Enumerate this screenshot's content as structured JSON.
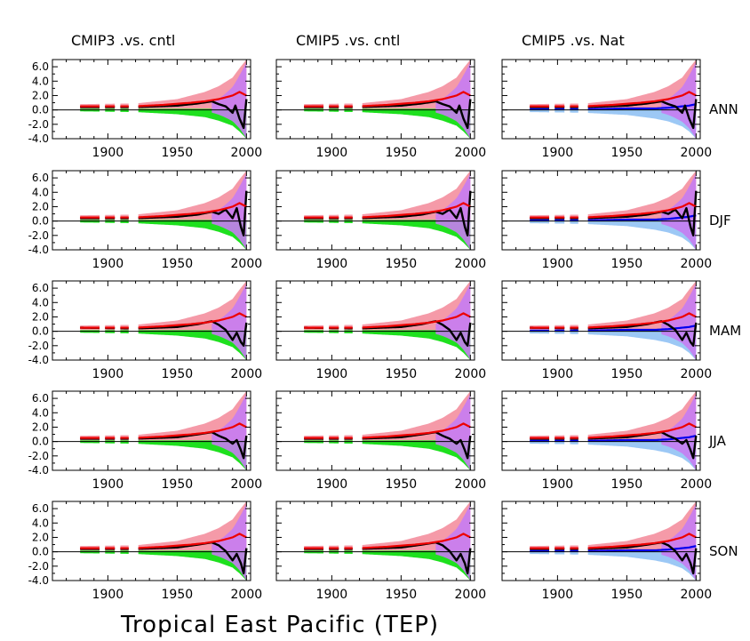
{
  "figure": {
    "title": "Tropical East Pacific (TEP)",
    "columns": [
      "CMIP3 .vs. cntl",
      "CMIP5 .vs. cntl",
      "CMIP5 .vs. Nat"
    ],
    "rows": [
      "ANN",
      "DJF",
      "MAM",
      "JJA",
      "SON"
    ],
    "colors": {
      "obs": "#000000",
      "forced": "#ee0000",
      "forced_band": "#f59aa8",
      "cntl_band": "#1ee01e",
      "nat": "#0000ee",
      "nat_band": "#9cc8f5",
      "overlap": "#c77cf2",
      "axis": "#000000"
    }
  },
  "chart_data": {
    "type": "line",
    "xlim": [
      1860,
      2003
    ],
    "ylim": [
      -4.0,
      7.0
    ],
    "xticks": [
      1900,
      1950,
      2000
    ],
    "yticks": [
      "6.0",
      "4.0",
      "2.0",
      "0.0",
      "-2.0",
      "-4.0"
    ],
    "grid": false,
    "panels_note": "5 rows (seasons) x 3 columns (comparisons); trend start year on x axis",
    "forced_trend": {
      "x": [
        1880,
        1900,
        1920,
        1940,
        1960,
        1970,
        1980,
        1990,
        1995,
        2000
      ],
      "y": [
        0.5,
        0.5,
        0.5,
        0.7,
        1.0,
        1.2,
        1.5,
        2.0,
        2.5,
        2.0
      ]
    },
    "forced_band_upper": {
      "x": [
        1880,
        1920,
        1950,
        1970,
        1980,
        1990,
        1995,
        2000
      ],
      "y": [
        0.8,
        0.9,
        1.5,
        2.5,
        3.3,
        4.5,
        5.8,
        7.0
      ]
    },
    "cntl_band_lower": {
      "x": [
        1880,
        1920,
        1950,
        1970,
        1980,
        1990,
        1995,
        2000
      ],
      "y": [
        -0.2,
        -0.3,
        -0.6,
        -1.0,
        -1.5,
        -2.2,
        -3.0,
        -4.0
      ]
    },
    "nat_trend": {
      "x": [
        1880,
        1920,
        1950,
        1970,
        1980,
        1990,
        1995,
        2000
      ],
      "y": [
        0.1,
        0.1,
        0.2,
        0.2,
        0.3,
        0.5,
        0.6,
        0.8
      ]
    },
    "nat_band_lower": {
      "x": [
        1880,
        1920,
        1950,
        1970,
        1980,
        1990,
        1995,
        2000
      ],
      "y": [
        -0.3,
        -0.4,
        -0.7,
        -1.2,
        -1.6,
        -2.3,
        -3.0,
        -4.0
      ]
    },
    "obs_trend": {
      "ANN": {
        "x": [
          1880,
          1920,
          1950,
          1965,
          1975,
          1980,
          1985,
          1990,
          1992,
          1995,
          1998,
          2000
        ],
        "y": [
          0.4,
          0.4,
          0.6,
          0.9,
          1.2,
          0.8,
          0.5,
          -0.4,
          0.6,
          -1.2,
          -2.5,
          1.5
        ]
      },
      "DJF": {
        "x": [
          1880,
          1920,
          1950,
          1965,
          1975,
          1980,
          1985,
          1990,
          1993,
          1996,
          1998,
          2000
        ],
        "y": [
          0.4,
          0.4,
          0.6,
          0.9,
          1.3,
          1.0,
          1.6,
          0.4,
          1.8,
          -0.8,
          -2.0,
          4.2
        ]
      },
      "MAM": {
        "x": [
          1880,
          1920,
          1950,
          1965,
          1975,
          1980,
          1985,
          1990,
          1993,
          1996,
          1998,
          2000
        ],
        "y": [
          0.5,
          0.4,
          0.6,
          1.0,
          1.4,
          0.9,
          0.2,
          -1.2,
          -0.2,
          -1.5,
          -2.0,
          1.2
        ]
      },
      "JJA": {
        "x": [
          1880,
          1920,
          1950,
          1965,
          1975,
          1980,
          1985,
          1990,
          1993,
          1996,
          1998,
          2000
        ],
        "y": [
          0.4,
          0.4,
          0.6,
          1.0,
          1.3,
          0.8,
          0.4,
          -0.3,
          0.2,
          -1.2,
          -2.3,
          0.8
        ]
      },
      "SON": {
        "x": [
          1880,
          1920,
          1950,
          1965,
          1975,
          1980,
          1985,
          1990,
          1993,
          1996,
          1998,
          2000
        ],
        "y": [
          0.4,
          0.4,
          0.6,
          1.0,
          1.3,
          0.9,
          0.1,
          -1.2,
          -0.3,
          -1.6,
          -3.0,
          0.5
        ]
      }
    },
    "gaps": [
      [
        1895,
        1897
      ],
      [
        1906,
        1908
      ],
      [
        1916,
        1921
      ]
    ]
  }
}
